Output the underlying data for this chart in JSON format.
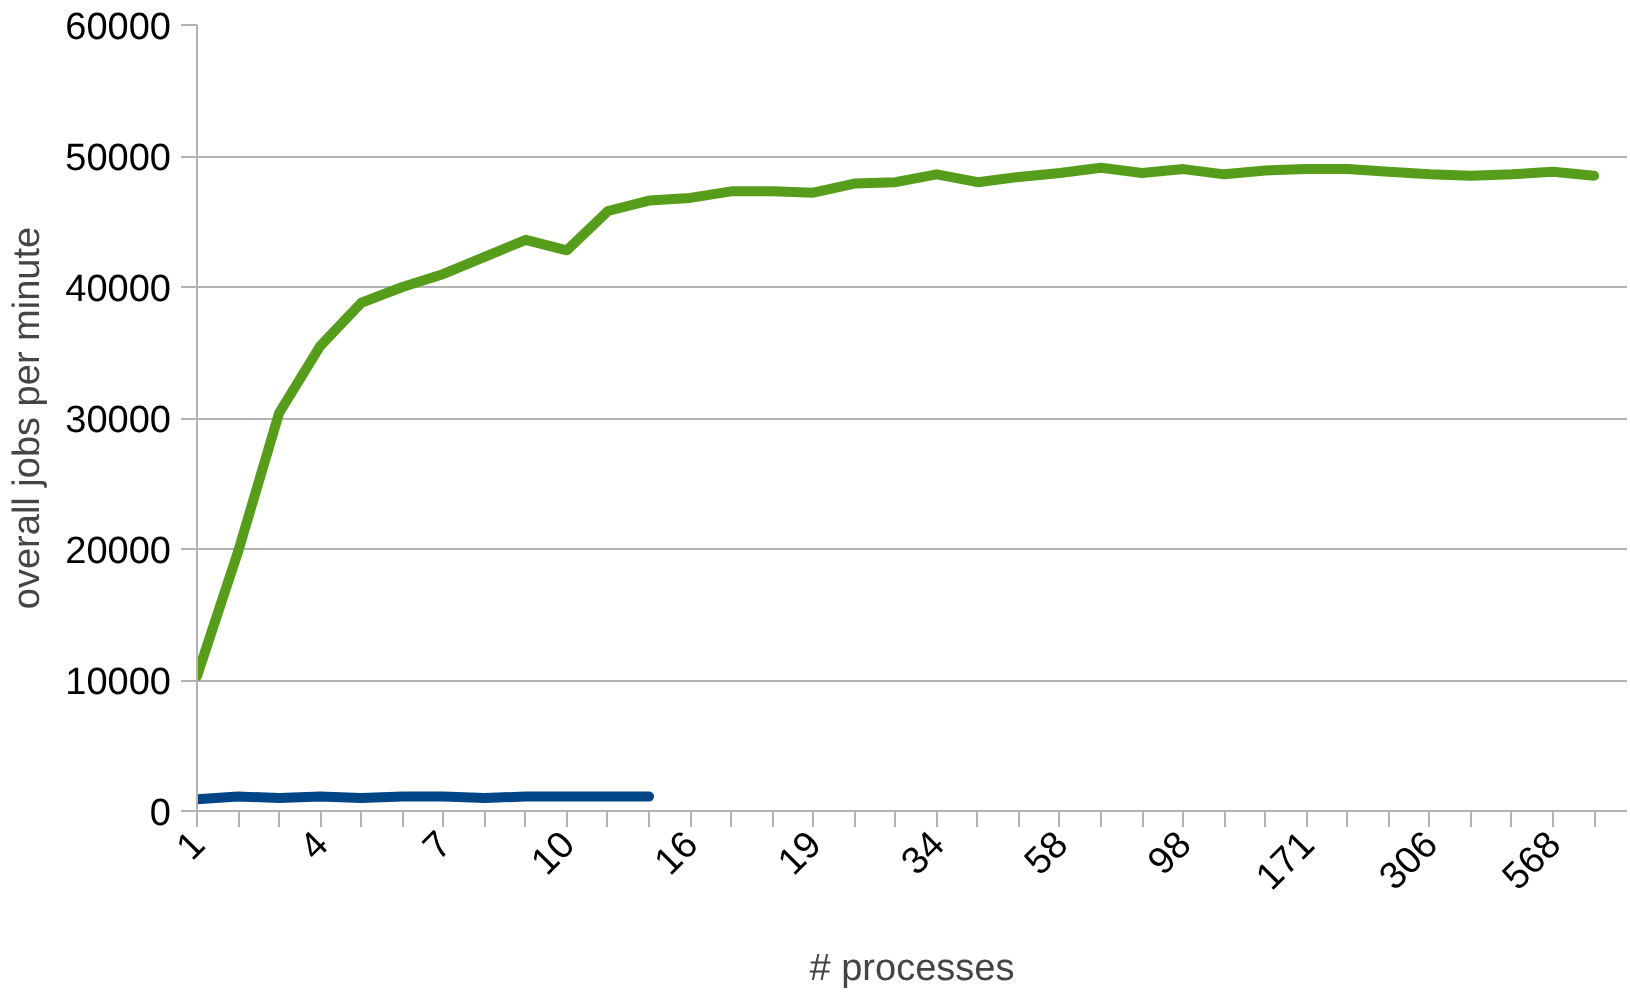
{
  "chart_data": {
    "type": "line",
    "xlabel": "# processes",
    "ylabel": "overall jobs per minute",
    "categories": [
      "1",
      null,
      null,
      "4",
      null,
      null,
      "7",
      null,
      null,
      "10",
      null,
      null,
      "16",
      null,
      null,
      "19",
      null,
      null,
      "34",
      null,
      null,
      "58",
      null,
      null,
      "98",
      null,
      null,
      "171",
      null,
      null,
      "306",
      null,
      null,
      "568",
      null
    ],
    "series": [
      {
        "color": "#579d1c",
        "values": [
          10300,
          19800,
          30400,
          35500,
          38800,
          40000,
          41000,
          42300,
          43600,
          42800,
          45800,
          46600,
          46800,
          47300,
          47300,
          47200,
          47900,
          48000,
          48600,
          48000,
          48400,
          48700,
          49100,
          48700,
          49000,
          48600,
          48900,
          49000,
          49000,
          48800,
          48600,
          48500,
          48600,
          48800,
          48500
        ]
      },
      {
        "color": "#004586",
        "values": [
          900,
          1100,
          1000,
          1100,
          1000,
          1100,
          1100,
          1000,
          1100,
          1100,
          1100,
          1100,
          null,
          null,
          null,
          null,
          null,
          null,
          null,
          null,
          null,
          null,
          null,
          null,
          null,
          null,
          null,
          null,
          null,
          null,
          null,
          null,
          null,
          null,
          null
        ]
      }
    ],
    "ylim": [
      0,
      60000
    ],
    "yticks": [
      0,
      10000,
      20000,
      30000,
      40000,
      50000,
      60000
    ],
    "grid": "y",
    "marker": "none",
    "line_style": "solid"
  }
}
